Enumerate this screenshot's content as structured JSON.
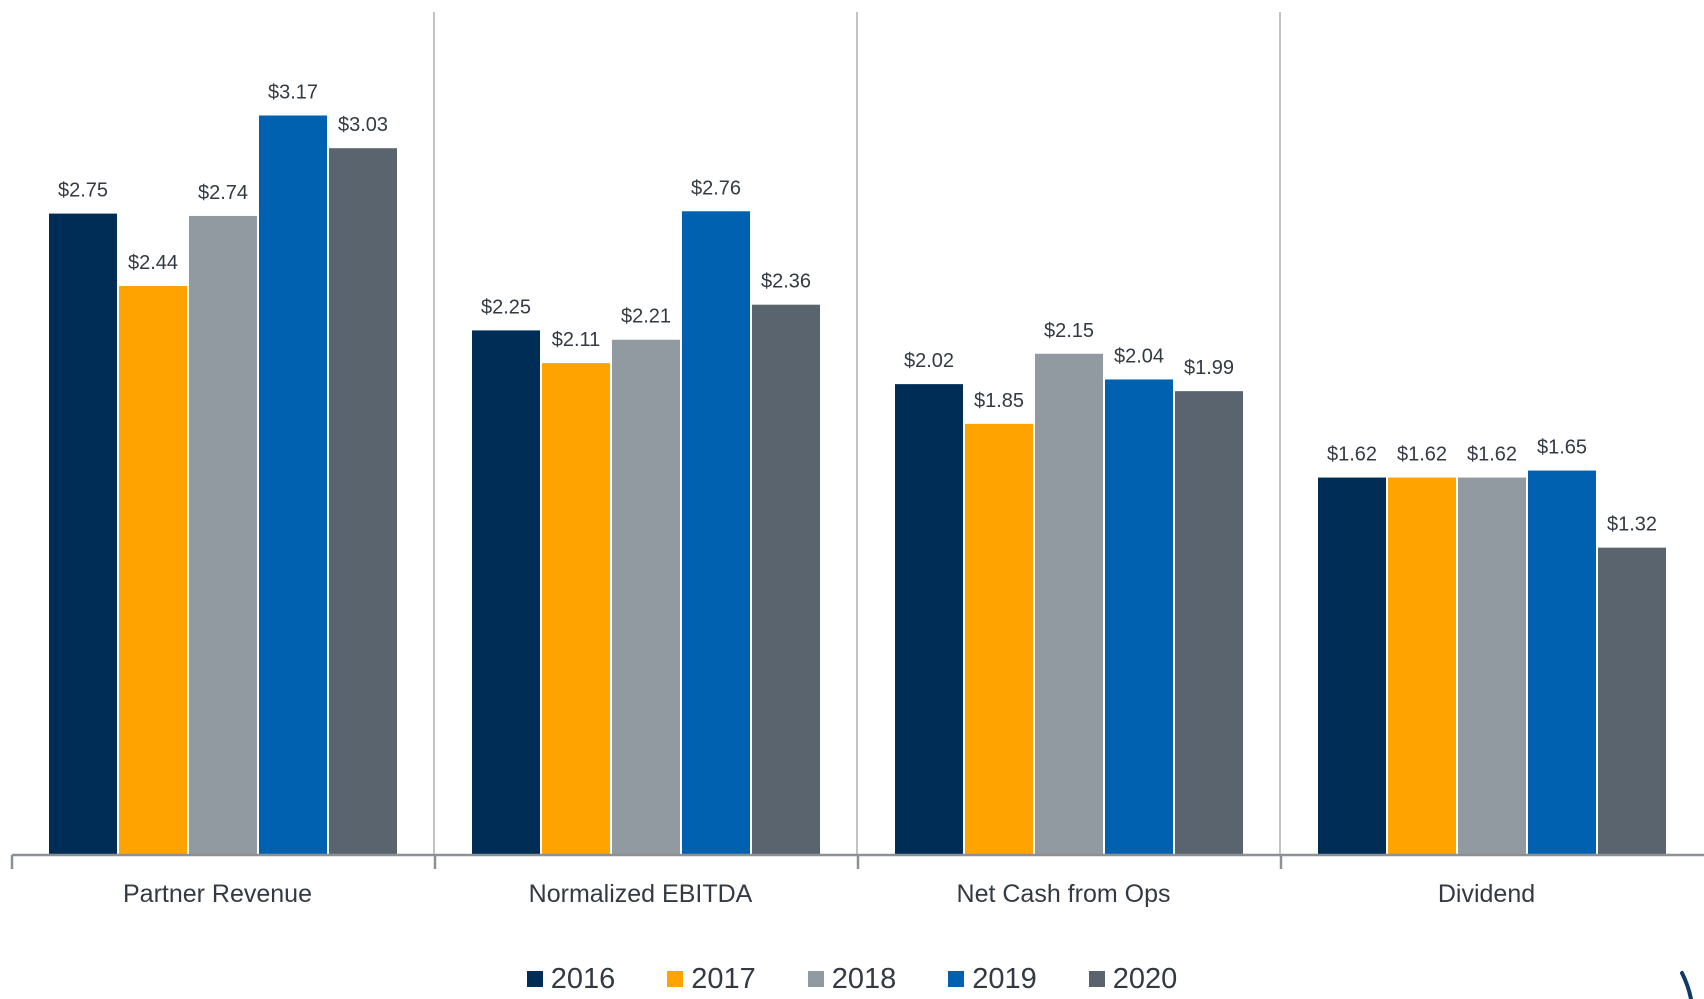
{
  "chart_data": {
    "type": "bar",
    "title": "",
    "xlabel": "",
    "ylabel": "",
    "ylim": [
      0,
      3.5
    ],
    "grid": false,
    "legend_position": "bottom",
    "value_prefix": "$",
    "categories": [
      "Partner Revenue",
      "Normalized EBITDA",
      "Net Cash from Ops",
      "Dividend"
    ],
    "series": [
      {
        "name": "2016",
        "color": "#002d56",
        "values": [
          2.75,
          2.25,
          2.02,
          1.62
        ]
      },
      {
        "name": "2017",
        "color": "#ffa300",
        "values": [
          2.44,
          2.11,
          1.85,
          1.62
        ]
      },
      {
        "name": "2018",
        "color": "#929aa1",
        "values": [
          2.74,
          2.21,
          2.15,
          1.62
        ]
      },
      {
        "name": "2019",
        "color": "#0061b1",
        "values": [
          3.17,
          2.76,
          2.04,
          1.65
        ]
      },
      {
        "name": "2020",
        "color": "#5a646e",
        "values": [
          3.03,
          2.36,
          1.99,
          1.32
        ]
      }
    ],
    "data_labels": [
      [
        "$2.75",
        "$2.25",
        "$2.02",
        "$1.62"
      ],
      [
        "$2.44",
        "$2.11",
        "$1.85",
        "$1.62"
      ],
      [
        "$2.74",
        "$2.21",
        "$2.15",
        "$1.62"
      ],
      [
        "$3.17",
        "$2.76",
        "$2.04",
        "$1.65"
      ],
      [
        "$3.03",
        "$2.36",
        "$1.99",
        "$1.32"
      ]
    ]
  },
  "colors": {
    "axis": "#8c9196",
    "divider": "#bfc4c8",
    "text": "#333a44",
    "corner_mark": "#0d3a66"
  }
}
